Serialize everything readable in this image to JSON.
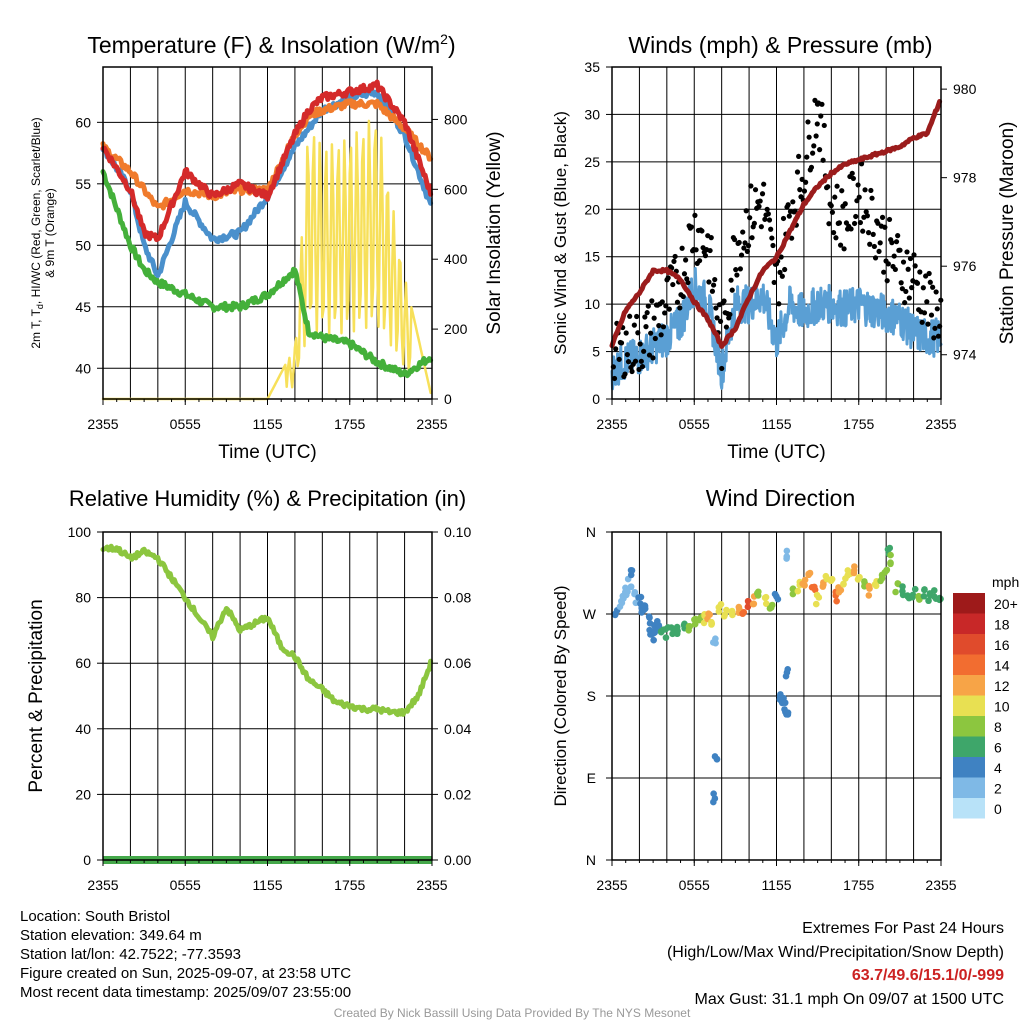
{
  "colors": {
    "temp": "#d42a2a",
    "dewpoint": "#44b03a",
    "feels_like": "#4a90cc",
    "temp9m": "#f07b2c",
    "solar": "#f7e05a",
    "wind": "#5a9fd4",
    "gust": "#000000",
    "pressure": "#9b1c1c",
    "rh": "#8cc63f",
    "precip": "#44a84a",
    "extremes": "#cc2222",
    "credit": "#999999"
  },
  "x_ticks": [
    "2355",
    "0555",
    "1155",
    "1755",
    "2355"
  ],
  "panels": {
    "temperature": {
      "title_main": "Temperature (F) & Insolation (W/m",
      "title_sup": "2",
      "title_end": ")",
      "ylabel_line1": "2m T, T",
      "ylabel_sub": "d",
      "ylabel_line1_rest": ", HI/WC (Red, Green, Scarlet/Blue)",
      "ylabel_line2": "& 9m T (Orange)",
      "ylabel_right": "Solar Insolation (Yellow)",
      "xlabel": "Time (UTC)",
      "left_ticks": [
        "40",
        "45",
        "50",
        "55",
        "60"
      ],
      "right_ticks": [
        "0",
        "200",
        "400",
        "600",
        "800"
      ]
    },
    "winds": {
      "title": "Winds (mph) & Pressure (mb)",
      "ylabel_left": "Sonic Wind & Gust (Blue, Black)",
      "ylabel_right": "Station Pressure (Maroon)",
      "xlabel": "Time (UTC)",
      "left_ticks": [
        "0",
        "5",
        "10",
        "15",
        "20",
        "25",
        "30",
        "35"
      ],
      "right_ticks": [
        "974",
        "976",
        "978",
        "980"
      ]
    },
    "humidity": {
      "title": "Relative Humidity (%) & Precipitation (in)",
      "ylabel_left": "Percent & Precipitation",
      "left_ticks": [
        "0",
        "20",
        "40",
        "60",
        "80",
        "100"
      ],
      "right_ticks": [
        "0.00",
        "0.02",
        "0.04",
        "0.06",
        "0.08",
        "0.10"
      ]
    },
    "direction": {
      "title": "Wind Direction",
      "ylabel_left": "Direction (Colored By Speed)",
      "dir_ticks": [
        "N",
        "E",
        "S",
        "W",
        "N"
      ],
      "legend_title": "mph",
      "legend_labels": [
        "20+",
        "18",
        "16",
        "14",
        "12",
        "10",
        "8",
        "6",
        "4",
        "2",
        "0"
      ],
      "legend_colors": [
        "#9e1a1a",
        "#c82828",
        "#e04b2c",
        "#f26d30",
        "#f7a447",
        "#e8e052",
        "#8cc63f",
        "#3ea66a",
        "#3f82c2",
        "#7fb9e6",
        "#b8e2f8"
      ]
    }
  },
  "info": {
    "location": "Location: South Bristol",
    "elevation": "Station elevation: 349.64 m",
    "latlon": "Station lat/lon: 42.7522; -77.3593",
    "created": "Figure created on Sun, 2025-09-07, at 23:58 UTC",
    "timestamp": "Most recent data timestamp: 2025/09/07 23:55:00",
    "extremes_title": "Extremes For Past 24 Hours",
    "extremes_sub": "(High/Low/Max Wind/Precipitation/Snow Depth)",
    "extremes_values": "63.7/49.6/15.1/0/-999",
    "max_gust": "Max Gust: 31.1 mph On 09/07 at 1500 UTC",
    "credit": "Created By Nick Bassill Using Data Provided By The NYS Mesonet"
  },
  "chart_data": [
    {
      "type": "line",
      "title": "Temperature (F) & Insolation (W/m2)",
      "xlabel": "Time (UTC)",
      "x_hours": [
        0,
        2,
        3,
        4,
        6,
        8,
        10,
        12,
        14,
        15,
        16,
        18,
        20,
        22,
        24
      ],
      "ylim": [
        37.5,
        64.5
      ],
      "y2lim": [
        0,
        950
      ],
      "series": [
        {
          "name": "2m T",
          "axis": "left",
          "values": [
            58,
            54.5,
            51,
            50.5,
            56,
            54,
            55,
            54,
            59,
            61,
            62,
            62.5,
            63,
            60,
            54
          ]
        },
        {
          "name": "Td",
          "axis": "left",
          "values": [
            56,
            50,
            48,
            47,
            46,
            45,
            45,
            46,
            48,
            43,
            42.5,
            42,
            40.5,
            39.5,
            41
          ]
        },
        {
          "name": "HI/WC",
          "axis": "left",
          "values": [
            58,
            54.5,
            50,
            47.5,
            53.5,
            50.5,
            51,
            54,
            58,
            59.5,
            61,
            62,
            62.5,
            59,
            53
          ]
        },
        {
          "name": "9m T",
          "axis": "left",
          "values": [
            58,
            56,
            54.5,
            53,
            54.5,
            54,
            54.5,
            54.5,
            59,
            60.5,
            61,
            61.5,
            61.5,
            59.5,
            57
          ]
        },
        {
          "name": "Solar Insolation",
          "axis": "right",
          "values": [
            0,
            0,
            0,
            0,
            0,
            0,
            0,
            0,
            150,
            800,
            730,
            750,
            820,
            350,
            0
          ]
        }
      ]
    },
    {
      "type": "line",
      "title": "Winds (mph) & Pressure (mb)",
      "xlabel": "Time (UTC)",
      "x_hours": [
        0,
        1,
        2,
        3,
        4,
        5,
        6,
        7,
        8,
        9,
        10,
        11,
        12,
        13,
        14,
        15,
        16,
        17,
        18,
        19,
        20,
        21,
        22,
        23,
        24
      ],
      "ylim": [
        0,
        35
      ],
      "y2lim": [
        973,
        980.5
      ],
      "series": [
        {
          "name": "Sonic Wind",
          "axis": "left",
          "values": [
            3,
            4,
            4.5,
            5.5,
            6.5,
            8,
            12,
            10,
            3,
            10,
            10,
            11,
            6,
            10,
            9,
            10,
            10,
            9.5,
            10,
            9.5,
            9,
            8.5,
            7,
            6.5,
            6.5
          ]
        },
        {
          "name": "Gust",
          "axis": "left",
          "values": [
            4,
            5.5,
            6,
            7.5,
            10,
            13,
            18,
            16,
            6,
            16,
            19,
            21,
            12,
            20,
            24,
            31.1,
            20,
            19,
            22,
            19,
            16,
            14,
            13,
            10,
            9
          ]
        },
        {
          "name": "Station Pressure",
          "axis": "right",
          "values": [
            974.2,
            975,
            975.4,
            975.9,
            975.9,
            975.7,
            975.2,
            974.8,
            974.2,
            974.6,
            975.3,
            975.9,
            976.2,
            976.8,
            977.4,
            977.8,
            978.1,
            978.3,
            978.4,
            978.5,
            978.6,
            978.7,
            978.9,
            979.0,
            979.8
          ]
        }
      ]
    },
    {
      "type": "line",
      "title": "Relative Humidity (%) & Precipitation (in)",
      "x_hours": [
        0,
        1,
        2,
        3,
        4,
        5,
        6,
        7,
        8,
        9,
        10,
        11,
        12,
        13,
        14,
        15,
        16,
        17,
        18,
        19,
        20,
        21,
        22,
        23,
        24
      ],
      "ylim": [
        0,
        100
      ],
      "y2lim": [
        0,
        0.1
      ],
      "series": [
        {
          "name": "Relative Humidity",
          "axis": "left",
          "values": [
            95,
            95,
            92,
            94,
            92,
            86,
            80,
            74,
            68,
            77,
            70,
            72,
            74,
            65,
            62,
            55,
            52,
            48,
            47,
            46,
            46,
            45,
            45,
            50,
            61
          ]
        },
        {
          "name": "Precipitation",
          "axis": "right",
          "values": [
            0,
            0,
            0,
            0,
            0,
            0,
            0,
            0,
            0,
            0,
            0,
            0,
            0,
            0,
            0,
            0,
            0,
            0,
            0,
            0,
            0,
            0,
            0,
            0,
            0
          ]
        }
      ]
    },
    {
      "type": "scatter",
      "title": "Wind Direction",
      "ylabel": "Direction (Colored By Speed)",
      "y_ticks": [
        "N",
        "E",
        "S",
        "W",
        "N"
      ],
      "ylim": [
        0,
        360
      ],
      "points": [
        {
          "h": 0.3,
          "dir": 270,
          "spd": 3
        },
        {
          "h": 0.6,
          "dir": 282,
          "spd": 2
        },
        {
          "h": 0.9,
          "dir": 290,
          "spd": 2
        },
        {
          "h": 1.1,
          "dir": 295,
          "spd": 2
        },
        {
          "h": 1.3,
          "dir": 305,
          "spd": 2
        },
        {
          "h": 1.5,
          "dir": 318,
          "spd": 3
        },
        {
          "h": 1.7,
          "dir": 288,
          "spd": 2
        },
        {
          "h": 2.0,
          "dir": 283,
          "spd": 3
        },
        {
          "h": 2.2,
          "dir": 275,
          "spd": 4
        },
        {
          "h": 2.5,
          "dir": 280,
          "spd": 3
        },
        {
          "h": 2.7,
          "dir": 265,
          "spd": 4
        },
        {
          "h": 2.8,
          "dir": 250,
          "spd": 4
        },
        {
          "h": 3.0,
          "dir": 245,
          "spd": 3
        },
        {
          "h": 3.1,
          "dir": 255,
          "spd": 4
        },
        {
          "h": 3.4,
          "dir": 260,
          "spd": 4
        },
        {
          "h": 3.7,
          "dir": 255,
          "spd": 5
        },
        {
          "h": 4.0,
          "dir": 250,
          "spd": 5
        },
        {
          "h": 4.4,
          "dir": 252,
          "spd": 5
        },
        {
          "h": 4.8,
          "dir": 254,
          "spd": 6
        },
        {
          "h": 5.2,
          "dir": 255,
          "spd": 6
        },
        {
          "h": 5.6,
          "dir": 258,
          "spd": 7
        },
        {
          "h": 6.0,
          "dir": 260,
          "spd": 7
        },
        {
          "h": 6.4,
          "dir": 262,
          "spd": 8
        },
        {
          "h": 6.8,
          "dir": 265,
          "spd": 9
        },
        {
          "h": 7.0,
          "dir": 270,
          "spd": 12
        },
        {
          "h": 7.2,
          "dir": 262,
          "spd": 10
        },
        {
          "h": 7.5,
          "dir": 240,
          "spd": 1
        },
        {
          "h": 7.6,
          "dir": 115,
          "spd": 3
        },
        {
          "h": 7.5,
          "dir": 68,
          "spd": 3
        },
        {
          "h": 7.9,
          "dir": 275,
          "spd": 9
        },
        {
          "h": 8.3,
          "dir": 272,
          "spd": 10
        },
        {
          "h": 8.8,
          "dir": 270,
          "spd": 9
        },
        {
          "h": 9.3,
          "dir": 272,
          "spd": 11
        },
        {
          "h": 9.6,
          "dir": 276,
          "spd": 14
        },
        {
          "h": 9.9,
          "dir": 280,
          "spd": 15
        },
        {
          "h": 10.3,
          "dir": 285,
          "spd": 11
        },
        {
          "h": 10.7,
          "dir": 290,
          "spd": 8
        },
        {
          "h": 11.2,
          "dir": 285,
          "spd": 9
        },
        {
          "h": 11.6,
          "dir": 280,
          "spd": 8
        },
        {
          "h": 12.0,
          "dir": 288,
          "spd": 4
        },
        {
          "h": 12.2,
          "dir": 180,
          "spd": 4
        },
        {
          "h": 12.4,
          "dir": 175,
          "spd": 4
        },
        {
          "h": 12.6,
          "dir": 168,
          "spd": 4
        },
        {
          "h": 12.8,
          "dir": 160,
          "spd": 3
        },
        {
          "h": 12.7,
          "dir": 205,
          "spd": 3
        },
        {
          "h": 12.8,
          "dir": 335,
          "spd": 2
        },
        {
          "h": 13.2,
          "dir": 295,
          "spd": 7
        },
        {
          "h": 13.6,
          "dir": 300,
          "spd": 9
        },
        {
          "h": 14.0,
          "dir": 305,
          "spd": 11
        },
        {
          "h": 14.4,
          "dir": 310,
          "spd": 12
        },
        {
          "h": 14.7,
          "dir": 295,
          "spd": 14
        },
        {
          "h": 15.0,
          "dir": 285,
          "spd": 10
        },
        {
          "h": 15.3,
          "dir": 300,
          "spd": 12
        },
        {
          "h": 15.6,
          "dir": 308,
          "spd": 9
        },
        {
          "h": 16.0,
          "dir": 312,
          "spd": 10
        },
        {
          "h": 16.3,
          "dir": 290,
          "spd": 13
        },
        {
          "h": 16.6,
          "dir": 298,
          "spd": 11
        },
        {
          "h": 17.0,
          "dir": 305,
          "spd": 10
        },
        {
          "h": 17.3,
          "dir": 315,
          "spd": 9
        },
        {
          "h": 17.6,
          "dir": 320,
          "spd": 12
        },
        {
          "h": 18.0,
          "dir": 310,
          "spd": 10
        },
        {
          "h": 18.4,
          "dir": 300,
          "spd": 8
        },
        {
          "h": 18.8,
          "dir": 295,
          "spd": 11
        },
        {
          "h": 19.2,
          "dir": 305,
          "spd": 9
        },
        {
          "h": 19.6,
          "dir": 312,
          "spd": 8
        },
        {
          "h": 20.0,
          "dir": 318,
          "spd": 7
        },
        {
          "h": 20.2,
          "dir": 340,
          "spd": 5
        },
        {
          "h": 20.4,
          "dir": 330,
          "spd": 8
        },
        {
          "h": 20.8,
          "dir": 300,
          "spd": 7
        },
        {
          "h": 21.2,
          "dir": 295,
          "spd": 6
        },
        {
          "h": 21.6,
          "dir": 290,
          "spd": 6
        },
        {
          "h": 22.0,
          "dir": 292,
          "spd": 5
        },
        {
          "h": 22.4,
          "dir": 288,
          "spd": 7
        },
        {
          "h": 22.8,
          "dir": 292,
          "spd": 6
        },
        {
          "h": 23.2,
          "dir": 290,
          "spd": 5
        },
        {
          "h": 23.6,
          "dir": 292,
          "spd": 6
        },
        {
          "h": 23.9,
          "dir": 290,
          "spd": 5
        }
      ]
    }
  ]
}
